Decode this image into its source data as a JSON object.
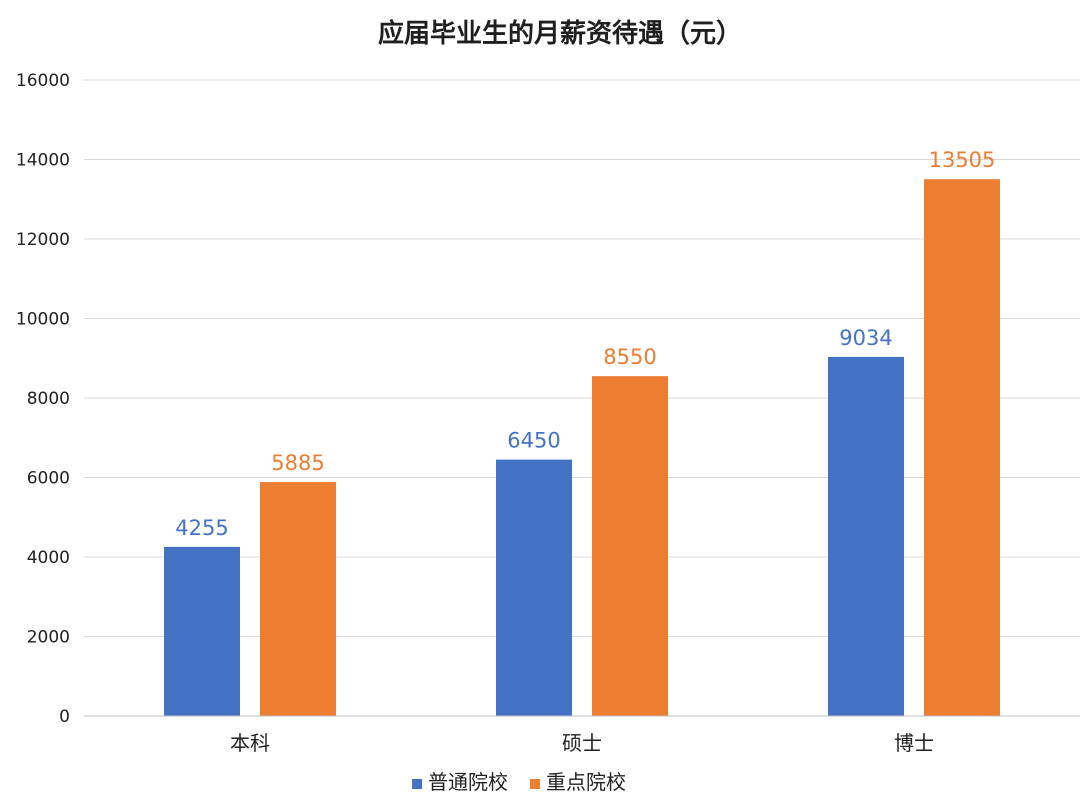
{
  "chart_data": {
    "type": "bar",
    "title": "应届毕业生的月薪资待遇（元）",
    "xlabel": "",
    "ylabel": "",
    "categories": [
      "本科",
      "硕士",
      "博士"
    ],
    "series": [
      {
        "name": "普通院校",
        "values": [
          4255,
          6450,
          9034
        ],
        "color": "#4472C4",
        "label_color": "#4472C4"
      },
      {
        "name": "重点院校",
        "values": [
          5885,
          8550,
          13505
        ],
        "color": "#ED7D31",
        "label_color": "#ED7D31"
      }
    ],
    "ylim": [
      0,
      16000
    ],
    "yticks": [
      0,
      2000,
      4000,
      6000,
      8000,
      10000,
      12000,
      14000,
      16000
    ],
    "grid": true,
    "legend_position": "bottom-center",
    "data_labels": true
  }
}
